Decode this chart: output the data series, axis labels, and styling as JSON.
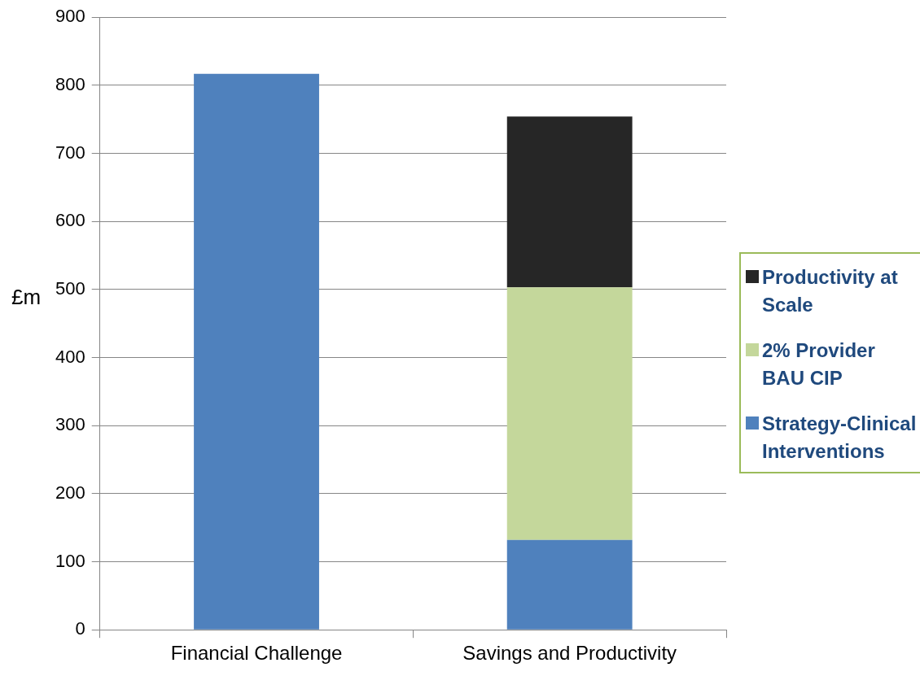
{
  "chart_data": {
    "type": "bar",
    "ylabel": "£m",
    "categories": [
      "Financial Challenge",
      "Savings and Productivity"
    ],
    "stacked": true,
    "ylim": [
      0,
      900
    ],
    "yticks": [
      0,
      100,
      200,
      300,
      400,
      500,
      600,
      700,
      800,
      900
    ],
    "grid": "y",
    "legend": "right",
    "series": [
      {
        "color": "#4f81bd",
        "values": [
          817,
          null
        ]
      },
      {
        "name": "Strategy-Clinical Interventions",
        "color": "#4f81bd",
        "values": [
          null,
          132
        ]
      },
      {
        "name": "2% Provider BAU CIP",
        "color": "#c4d79b",
        "values": [
          null,
          371
        ]
      },
      {
        "name": "Productivity at Scale",
        "color": "#262626",
        "values": [
          null,
          251
        ]
      }
    ]
  }
}
